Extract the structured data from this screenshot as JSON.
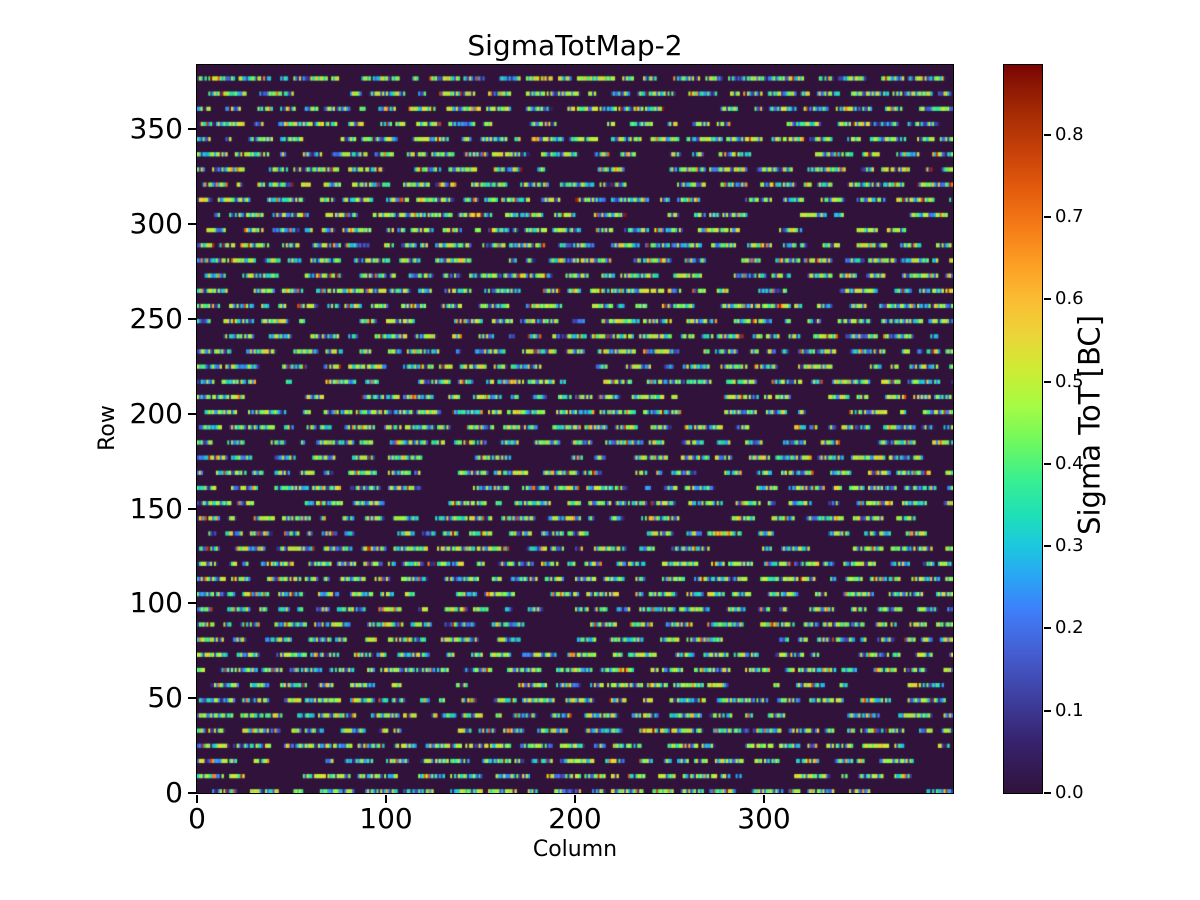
{
  "chart_data": {
    "type": "heatmap",
    "title": "SigmaTotMap-2",
    "xlabel": "Column",
    "ylabel": "Row",
    "xlim": [
      0,
      400
    ],
    "ylim": [
      0,
      384
    ],
    "x_ticks": [
      0,
      100,
      200,
      300
    ],
    "y_ticks": [
      0,
      50,
      100,
      150,
      200,
      250,
      300,
      350
    ],
    "grid": false,
    "colorbar": {
      "label": "Sigma ToT [BC]",
      "tick_labels": [
        "0.0",
        "0.1",
        "0.2",
        "0.3",
        "0.4",
        "0.5",
        "0.6",
        "0.7",
        "0.8"
      ],
      "tick_values": [
        0.0,
        0.1,
        0.2,
        0.3,
        0.4,
        0.5,
        0.6,
        0.7,
        0.8
      ],
      "vmin": 0.0,
      "vmax": 0.885,
      "colormap": "turbo",
      "stops": [
        [
          0.0,
          "#30123b"
        ],
        [
          0.07,
          "#37236d"
        ],
        [
          0.13,
          "#3e3f9f"
        ],
        [
          0.19,
          "#455ccf"
        ],
        [
          0.25,
          "#3e7efa"
        ],
        [
          0.3,
          "#28a8f3"
        ],
        [
          0.34,
          "#1cc8dd"
        ],
        [
          0.38,
          "#1edfb9"
        ],
        [
          0.43,
          "#38ef90"
        ],
        [
          0.48,
          "#6cf95f"
        ],
        [
          0.53,
          "#a4fb44"
        ],
        [
          0.58,
          "#cdec34"
        ],
        [
          0.63,
          "#ecd438"
        ],
        [
          0.68,
          "#fbbb32"
        ],
        [
          0.73,
          "#fc9c22"
        ],
        [
          0.78,
          "#f57a16"
        ],
        [
          0.83,
          "#e35b0c"
        ],
        [
          0.88,
          "#c84109"
        ],
        [
          0.93,
          "#a82d05"
        ],
        [
          0.97,
          "#8d1804"
        ],
        [
          1.0,
          "#7a0403"
        ]
      ]
    },
    "pattern": {
      "rows": 384,
      "cols": 400,
      "background_value": 0.0,
      "stripe_row_period": 8,
      "stripe_thickness_rows": 2,
      "dash_min_cells": 3,
      "dash_max_cells": 20,
      "gap_min_cells": 1,
      "gap_max_cells": 9,
      "long_gap_probability": 0.12,
      "long_gap_extra_cells": 28,
      "start_colored_probability": 0.7,
      "value_distribution": [
        {
          "min": 0.04,
          "max": 0.13,
          "weight": 0.11
        },
        {
          "min": 0.13,
          "max": 0.23,
          "weight": 0.15
        },
        {
          "min": 0.23,
          "max": 0.33,
          "weight": 0.15
        },
        {
          "min": 0.33,
          "max": 0.45,
          "weight": 0.22
        },
        {
          "min": 0.45,
          "max": 0.56,
          "weight": 0.32
        },
        {
          "min": 0.58,
          "max": 0.72,
          "weight": 0.03
        },
        {
          "min": 0.72,
          "max": 0.885,
          "weight": 0.02
        }
      ],
      "description": "Dark background (value 0) with dashed horizontal stripes of noisy Sigma ToT values every 8th pixel row; dashes are mostly 0.1-0.55 (blue/teal/green/yellow) with rare 0.6-0.88 (orange/red) outliers."
    }
  }
}
